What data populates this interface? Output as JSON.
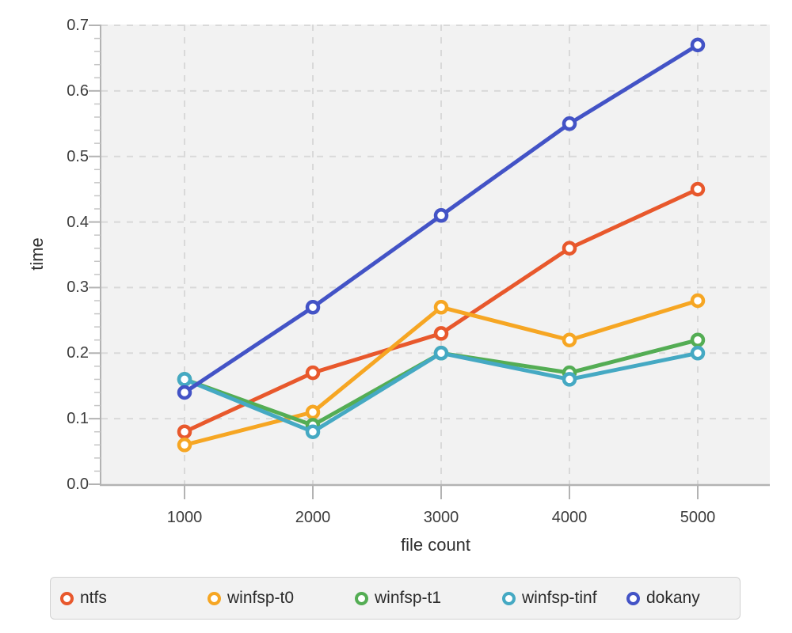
{
  "chart_data": {
    "type": "line",
    "title": "",
    "xlabel": "file count",
    "ylabel": "time",
    "x": [
      1000,
      2000,
      3000,
      4000,
      5000
    ],
    "x_tick_labels": [
      "1000",
      "2000",
      "3000",
      "4000",
      "5000"
    ],
    "y_ticks": [
      0.0,
      0.1,
      0.2,
      0.3,
      0.4,
      0.5,
      0.6,
      0.7
    ],
    "y_tick_labels": [
      "0.0",
      "0.1",
      "0.2",
      "0.3",
      "0.4",
      "0.5",
      "0.6",
      "0.7"
    ],
    "ylim": [
      0,
      0.7
    ],
    "xlim": [
      1000,
      5000
    ],
    "minor_tick_step": 0.02,
    "grid": true,
    "marker": "open-circle",
    "legend_position": "bottom",
    "series": [
      {
        "name": "ntfs",
        "color": "#e8582c",
        "values": [
          0.08,
          0.17,
          0.23,
          0.36,
          0.45
        ]
      },
      {
        "name": "winfsp-t0",
        "color": "#f6a623",
        "values": [
          0.06,
          0.11,
          0.27,
          0.22,
          0.28
        ]
      },
      {
        "name": "winfsp-t1",
        "color": "#54ad54",
        "values": [
          0.16,
          0.09,
          0.2,
          0.17,
          0.22
        ]
      },
      {
        "name": "winfsp-tinf",
        "color": "#45a9c3",
        "values": [
          0.16,
          0.08,
          0.2,
          0.16,
          0.2
        ]
      },
      {
        "name": "dokany",
        "color": "#4353c6",
        "values": [
          0.14,
          0.27,
          0.41,
          0.55,
          0.67
        ]
      }
    ],
    "colors": {
      "plot_background": "#f2f2f2",
      "gridline": "#d9d9d9",
      "axis_line": "#b3b3b3",
      "tick": "#b3b3b3",
      "minor_tick": "#c6c6c6",
      "text": "#3b3b3b"
    }
  }
}
